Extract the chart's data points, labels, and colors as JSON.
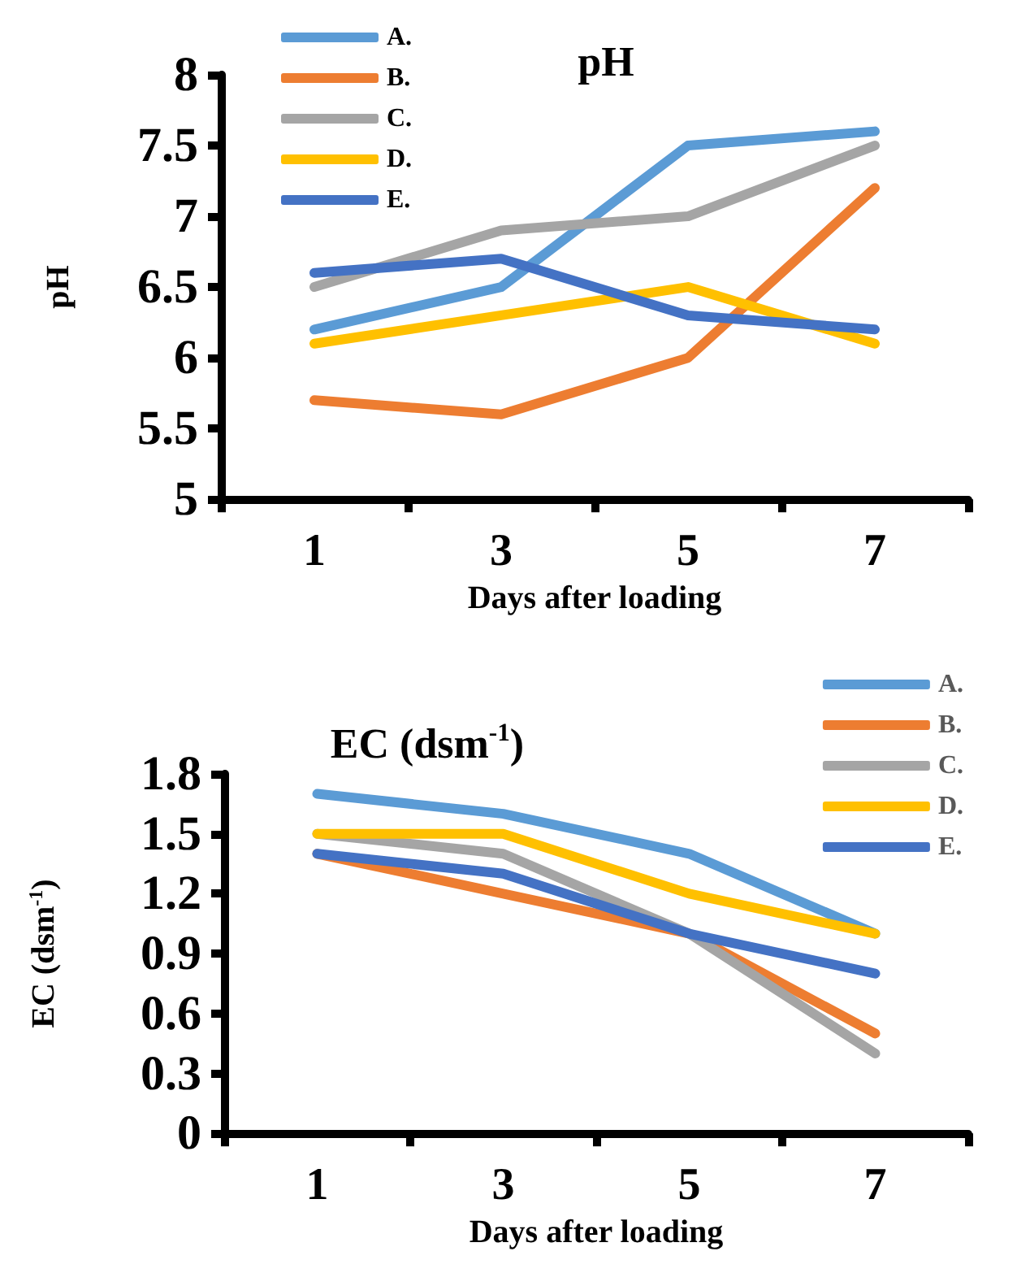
{
  "chart_data": [
    {
      "type": "line",
      "title": "pH",
      "xlabel": "Days after loading",
      "ylabel": "pH",
      "categories": [
        "1",
        "3",
        "5",
        "7"
      ],
      "ylim": [
        5,
        8
      ],
      "yticks": [
        5,
        5.5,
        6,
        6.5,
        7,
        7.5,
        8
      ],
      "grid": false,
      "legend": "top left",
      "marker": "none",
      "line_style": "solid",
      "series": [
        {
          "name": "A.",
          "color": "#5b9bd5",
          "values": [
            6.2,
            6.5,
            7.5,
            7.6
          ]
        },
        {
          "name": "B.",
          "color": "#ed7d31",
          "values": [
            5.7,
            5.6,
            6.0,
            7.2
          ]
        },
        {
          "name": "C.",
          "color": "#a5a5a5",
          "values": [
            6.5,
            6.9,
            7.0,
            7.5
          ]
        },
        {
          "name": "D.",
          "color": "#ffc000",
          "values": [
            6.1,
            6.3,
            6.5,
            6.1
          ]
        },
        {
          "name": "E.",
          "color": "#4472c4",
          "values": [
            6.6,
            6.7,
            6.3,
            6.2
          ]
        }
      ]
    },
    {
      "type": "line",
      "title": "EC (dsm$^{-1}$)",
      "xlabel": "Days after loading",
      "ylabel": "EC (dsm$^{-1}$)",
      "categories": [
        "1",
        "3",
        "5",
        "7"
      ],
      "ylim": [
        0,
        1.8
      ],
      "yticks": [
        0,
        0.3,
        0.6,
        0.9,
        1.2,
        1.5,
        1.8
      ],
      "grid": false,
      "legend": "top right",
      "marker": "none",
      "line_style": "solid",
      "series": [
        {
          "name": "A.",
          "color": "#5b9bd5",
          "values": [
            1.7,
            1.6,
            1.4,
            1.0
          ]
        },
        {
          "name": "B.",
          "color": "#ed7d31",
          "values": [
            1.4,
            1.2,
            1.0,
            0.5
          ]
        },
        {
          "name": "C.",
          "color": "#a5a5a5",
          "values": [
            1.5,
            1.4,
            1.0,
            0.4
          ]
        },
        {
          "name": "D.",
          "color": "#ffc000",
          "values": [
            1.5,
            1.5,
            1.2,
            1.0
          ]
        },
        {
          "name": "E.",
          "color": "#4472c4",
          "values": [
            1.4,
            1.3,
            1.0,
            0.8
          ]
        }
      ]
    }
  ]
}
